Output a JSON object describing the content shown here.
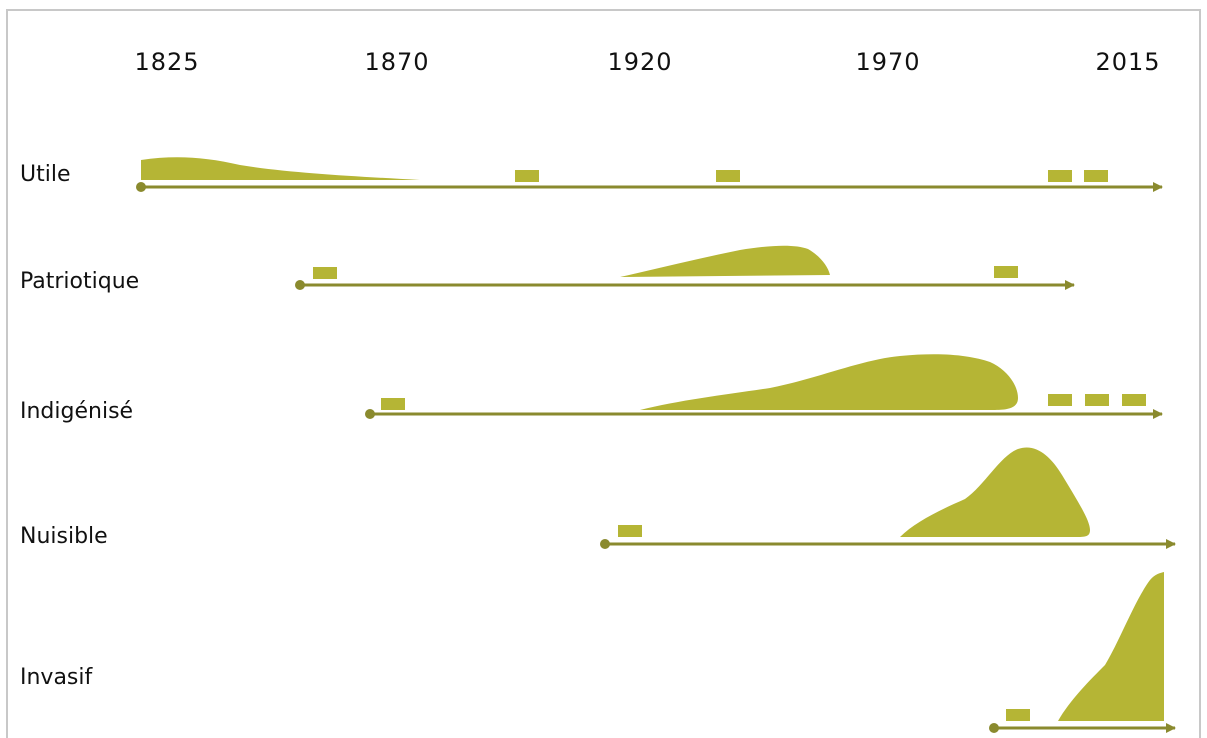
{
  "years": [
    "1825",
    "1870",
    "1920",
    "1970",
    "2015"
  ],
  "rows": [
    {
      "label": "Utile"
    },
    {
      "label": "Patriotique"
    },
    {
      "label": "Indigénisé"
    },
    {
      "label": "Nuisible"
    },
    {
      "label": "Invasif"
    }
  ],
  "colors": {
    "fill": "#b5b535",
    "axis": "#8a8a2e",
    "text": "#111111",
    "frame": "#c8c8c8"
  }
}
